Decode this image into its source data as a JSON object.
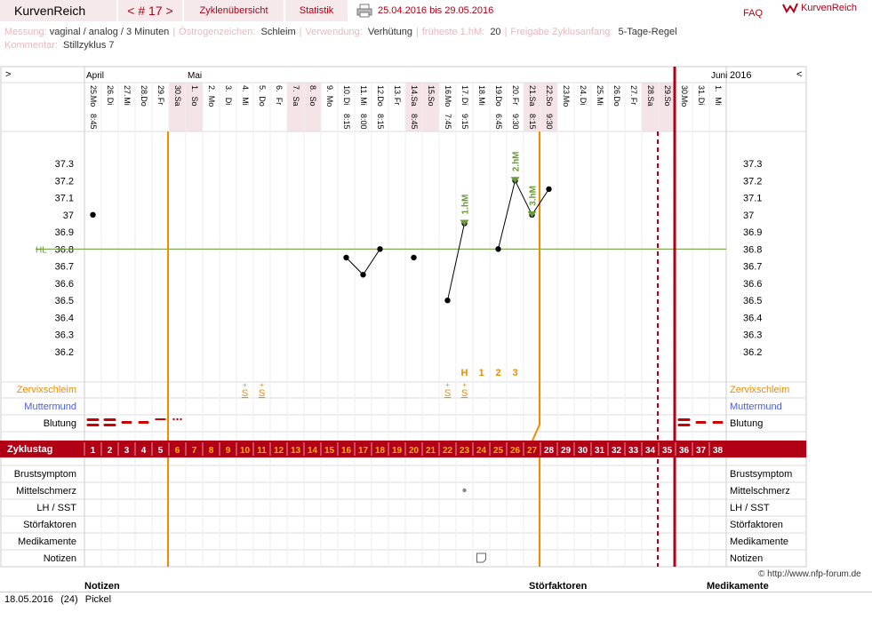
{
  "header": {
    "brand": "KurvenReich",
    "cycle_nav": "< # 17 >",
    "overview_label": "Zyklenübersicht",
    "stats_label": "Statistik",
    "date_range": "25.04.2016 bis 29.05.2016",
    "faq_label": "FAQ",
    "logo_text": "KurvenReich"
  },
  "info": {
    "messung_label": "Messung:",
    "messung_value": "vaginal / analog / 3 Minuten",
    "oestrogen_label": "Östrogenzeichen:",
    "oestrogen_value": "Schleim",
    "verwendung_label": "Verwendung:",
    "verwendung_value": "Verhütung",
    "frueheste_label": "früheste 1.hM:",
    "frueheste_value": "20",
    "freigabe_label": "Freigabe Zyklusanfang:",
    "freigabe_value": "5-Tage-Regel",
    "kommentar_label": "Kommentar:",
    "kommentar_value": "Stillzyklus 7"
  },
  "chart_nav": {
    "left": ">",
    "right": "<"
  },
  "months": [
    {
      "label": "April",
      "col": 0
    },
    {
      "label": "Mai",
      "col": 6
    },
    {
      "label": "Juni",
      "col": 37
    }
  ],
  "year_label": "2016",
  "days": [
    {
      "d": "25.",
      "w": "Mo",
      "t": "8:45",
      "we": false
    },
    {
      "d": "26.",
      "w": "Di",
      "t": "",
      "we": false
    },
    {
      "d": "27.",
      "w": "Mi",
      "t": "",
      "we": false
    },
    {
      "d": "28.",
      "w": "Do",
      "t": "",
      "we": false
    },
    {
      "d": "29.",
      "w": "Fr",
      "t": "",
      "we": false
    },
    {
      "d": "30.",
      "w": "Sa",
      "t": "",
      "we": true
    },
    {
      "d": "1.",
      "w": "So",
      "t": "",
      "we": true
    },
    {
      "d": "2.",
      "w": "Mo",
      "t": "",
      "we": false
    },
    {
      "d": "3.",
      "w": "Di",
      "t": "",
      "we": false
    },
    {
      "d": "4.",
      "w": "Mi",
      "t": "",
      "we": false
    },
    {
      "d": "5.",
      "w": "Do",
      "t": "",
      "we": false
    },
    {
      "d": "6.",
      "w": "Fr",
      "t": "",
      "we": false
    },
    {
      "d": "7.",
      "w": "Sa",
      "t": "",
      "we": true
    },
    {
      "d": "8.",
      "w": "So",
      "t": "",
      "we": true
    },
    {
      "d": "9.",
      "w": "Mo",
      "t": "",
      "we": false
    },
    {
      "d": "10.",
      "w": "Di",
      "t": "8:15",
      "we": false
    },
    {
      "d": "11.",
      "w": "Mi",
      "t": "8:00",
      "we": false
    },
    {
      "d": "12.",
      "w": "Do",
      "t": "8:15",
      "we": false
    },
    {
      "d": "13.",
      "w": "Fr",
      "t": "",
      "we": false
    },
    {
      "d": "14.",
      "w": "Sa",
      "t": "8:45",
      "we": true
    },
    {
      "d": "15.",
      "w": "So",
      "t": "",
      "we": true
    },
    {
      "d": "16.",
      "w": "Mo",
      "t": "7:45",
      "we": false
    },
    {
      "d": "17.",
      "w": "Di",
      "t": "9:15",
      "we": false
    },
    {
      "d": "18.",
      "w": "Mi",
      "t": "",
      "we": false
    },
    {
      "d": "19.",
      "w": "Do",
      "t": "6:45",
      "we": false
    },
    {
      "d": "20.",
      "w": "Fr",
      "t": "9:30",
      "we": false
    },
    {
      "d": "21.",
      "w": "Sa",
      "t": "8:15",
      "we": true
    },
    {
      "d": "22.",
      "w": "So",
      "t": "9:30",
      "we": true
    },
    {
      "d": "23.",
      "w": "Mo",
      "t": "",
      "we": false
    },
    {
      "d": "24.",
      "w": "Di",
      "t": "",
      "we": false
    },
    {
      "d": "25.",
      "w": "Mi",
      "t": "",
      "we": false
    },
    {
      "d": "26.",
      "w": "Do",
      "t": "",
      "we": false
    },
    {
      "d": "27.",
      "w": "Fr",
      "t": "",
      "we": false
    },
    {
      "d": "28.",
      "w": "Sa",
      "t": "",
      "we": true
    },
    {
      "d": "29.",
      "w": "So",
      "t": "",
      "we": true
    },
    {
      "d": "30.",
      "w": "Mo",
      "t": "",
      "we": false
    },
    {
      "d": "31.",
      "w": "Di",
      "t": "",
      "we": false
    },
    {
      "d": "1.",
      "w": "Mi",
      "t": "",
      "we": false
    }
  ],
  "temp_ticks": [
    "37.3",
    "37.2",
    "37.1",
    "37",
    "36.9",
    "36.8",
    "36.7",
    "36.6",
    "36.5",
    "36.4",
    "36.3",
    "36.2"
  ],
  "hl_label": "HL",
  "chart_data": {
    "type": "line",
    "ylim": [
      36.1,
      37.5
    ],
    "hl": 36.8,
    "points": [
      {
        "day": 1,
        "v": 37.0
      },
      {
        "day": 16,
        "v": 36.75
      },
      {
        "day": 17,
        "v": 36.65
      },
      {
        "day": 18,
        "v": 36.8
      },
      {
        "day": 20,
        "v": 36.75
      },
      {
        "day": 22,
        "v": 36.5
      },
      {
        "day": 23,
        "v": 36.95
      },
      {
        "day": 25,
        "v": 36.8
      },
      {
        "day": 26,
        "v": 37.2
      },
      {
        "day": 27,
        "v": 37.0
      },
      {
        "day": 28,
        "v": 37.15
      }
    ],
    "segments": [
      [
        16,
        17,
        18
      ],
      [
        22,
        23
      ],
      [
        25,
        26,
        27,
        28
      ]
    ],
    "markers": [
      {
        "day": 23,
        "label": "1.hM"
      },
      {
        "day": 26,
        "label": "2.hM"
      },
      {
        "day": 27,
        "label": "3.hM"
      }
    ]
  },
  "hm_row": [
    {
      "day": 23,
      "t": "H"
    },
    {
      "day": 24,
      "t": "1"
    },
    {
      "day": 25,
      "t": "2"
    },
    {
      "day": 26,
      "t": "3"
    }
  ],
  "mucus_days": [
    10,
    11,
    22,
    23
  ],
  "mucus_glyph": "S",
  "rows": {
    "zervix": "Zervixschleim",
    "muttermund": "Muttermund",
    "blutung": "Blutung",
    "zyklustag": "Zyklustag",
    "brust": "Brustsymptom",
    "mittel": "Mittelschmerz",
    "lh": "LH / SST",
    "stoer": "Störfaktoren",
    "medi": "Medikamente",
    "notizen": "Notizen"
  },
  "bleeding": [
    {
      "day": 1,
      "k": "heavy"
    },
    {
      "day": 2,
      "k": "heavy"
    },
    {
      "day": 3,
      "k": "medium"
    },
    {
      "day": 4,
      "k": "medium"
    },
    {
      "day": 5,
      "k": "light"
    },
    {
      "day": 6,
      "k": "spot"
    },
    {
      "day": 36,
      "k": "heavy"
    },
    {
      "day": 37,
      "k": "medium"
    },
    {
      "day": 38,
      "k": "medium"
    }
  ],
  "cycle_days": [
    "1",
    "2",
    "3",
    "4",
    "5",
    "6",
    "7",
    "8",
    "9",
    "10",
    "11",
    "12",
    "13",
    "14",
    "15",
    "16",
    "17",
    "18",
    "19",
    "20",
    "21",
    "22",
    "23",
    "24",
    "25",
    "26",
    "27",
    "28",
    "29",
    "30",
    "31",
    "32",
    "33",
    "34",
    "35",
    "36",
    "37",
    "38"
  ],
  "mittelschmerz_day": 23,
  "note_day": 24,
  "copyright": "© http://www.nfp-forum.de",
  "bottom": {
    "notizen": "Notizen",
    "stoerfaktoren": "Störfaktoren",
    "medikamente": "Medikamente",
    "note_date": "18.05.2016",
    "note_day": "(24)",
    "note_text": "Pickel"
  },
  "colors": {
    "accent": "#b10016",
    "orange": "#f08c00",
    "hl": "#6a9a3a",
    "weekend": "#f5e4e7"
  }
}
